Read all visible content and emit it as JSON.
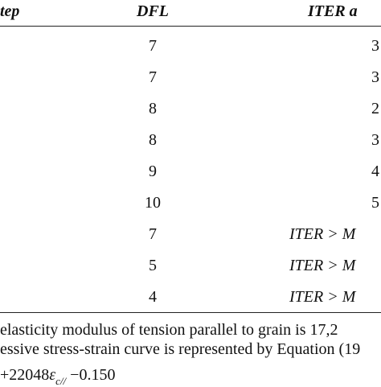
{
  "table": {
    "header": [
      "tep",
      "DFL",
      "ITER a"
    ],
    "rows": [
      [
        "7",
        "3"
      ],
      [
        "7",
        "3"
      ],
      [
        "8",
        "2"
      ],
      [
        "8",
        "3"
      ],
      [
        "9",
        "4"
      ],
      [
        "10",
        "5"
      ],
      [
        "7",
        "ITER > M"
      ],
      [
        "5",
        "ITER > M"
      ],
      [
        "4",
        "ITER > M"
      ]
    ]
  },
  "text": {
    "lines": [
      "elasticity modulus of tension parallel to grain is 17,2",
      "essive stress-strain curve is represented by Equation (19"
    ],
    "equation": {
      "prefix": "+22048",
      "symbol": "ε",
      "subscript": "c//",
      "suffix": " −0.150"
    }
  }
}
